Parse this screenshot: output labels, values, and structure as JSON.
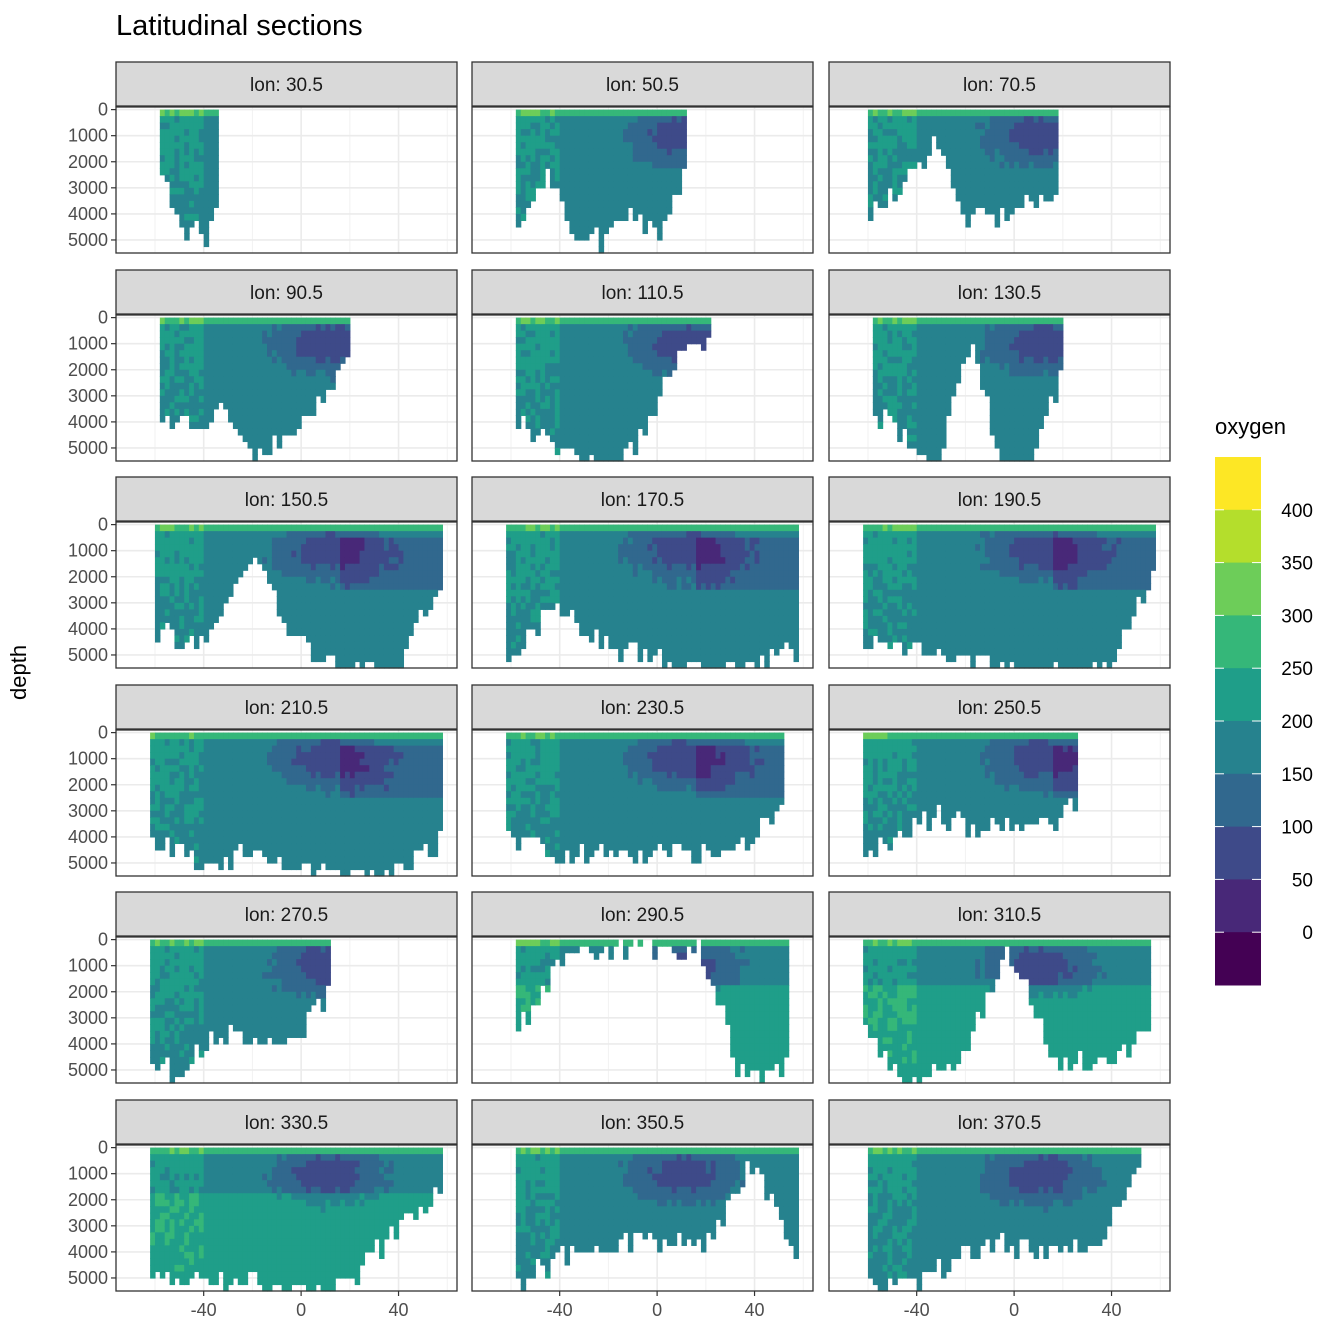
{
  "chart_data": {
    "type": "heatmap",
    "title": "Latitudinal sections",
    "ylabel": "depth",
    "xlabel": "",
    "facet_prefix": "lon: ",
    "panels": [
      {
        "label": "lon: 30.5",
        "lon": 30.5,
        "lat_range": [
          -58,
          -34
        ],
        "max_depth": [
          2000,
          4000,
          5000,
          4000,
          5000,
          2500
        ]
      },
      {
        "label": "lon: 50.5",
        "lon": 50.5,
        "lat_range": [
          -58,
          12
        ],
        "max_depth": [
          4500,
          2500,
          4500,
          5000,
          3500,
          5000,
          1800
        ]
      },
      {
        "label": "lon: 70.5",
        "lon": 70.5,
        "lat_range": [
          -60,
          18
        ],
        "max_depth": [
          4000,
          3000,
          1000,
          4000,
          4000,
          3500,
          3000
        ]
      },
      {
        "label": "lon: 90.5",
        "lon": 90.5,
        "lat_range": [
          -58,
          20
        ],
        "max_depth": [
          4000,
          4000,
          3500,
          5000,
          4500,
          3000,
          1500
        ]
      },
      {
        "label": "lon: 110.5",
        "lon": 110.5,
        "lat_range": [
          -58,
          22
        ],
        "max_depth": [
          4000,
          4500,
          5500,
          5500,
          4000,
          1000,
          800
        ]
      },
      {
        "label": "lon: 130.5",
        "lon": 130.5,
        "lat_range": [
          -58,
          20
        ],
        "max_depth": [
          3500,
          4500,
          5500,
          500,
          5500,
          5500,
          1500
        ]
      },
      {
        "label": "lon: 150.5",
        "lon": 150.5,
        "lat_range": [
          -60,
          58
        ],
        "max_depth": [
          4000,
          4500,
          1000,
          4500,
          5500,
          5500,
          1500
        ]
      },
      {
        "label": "lon: 170.5",
        "lon": 170.5,
        "lat_range": [
          -62,
          58
        ],
        "max_depth": [
          5000,
          3000,
          4500,
          5000,
          5500,
          5500,
          4500
        ]
      },
      {
        "label": "lon: 190.5",
        "lon": 190.5,
        "lat_range": [
          -62,
          58
        ],
        "max_depth": [
          4500,
          4500,
          5000,
          5500,
          5500,
          5500,
          1500
        ]
      },
      {
        "label": "lon: 210.5",
        "lon": 210.5,
        "lat_range": [
          -62,
          58
        ],
        "max_depth": [
          4000,
          5000,
          4500,
          5000,
          5500,
          5000,
          4000
        ]
      },
      {
        "label": "lon: 230.5",
        "lon": 230.5,
        "lat_range": [
          -62,
          52
        ],
        "max_depth": [
          4000,
          4500,
          4500,
          4500,
          4500,
          4500,
          2500
        ]
      },
      {
        "label": "lon: 250.5",
        "lon": 250.5,
        "lat_range": [
          -62,
          26
        ],
        "max_depth": [
          4500,
          4000,
          3000,
          3500,
          3500,
          3500,
          2500
        ]
      },
      {
        "label": "lon: 270.5",
        "lon": 270.5,
        "lat_range": [
          -62,
          12
        ],
        "max_depth": [
          4500,
          5000,
          3500,
          3500,
          4000,
          3500,
          1500
        ]
      },
      {
        "label": "lon: 290.5",
        "lon": 290.5,
        "lat_range": [
          -58,
          54
        ],
        "max_depth": [
          3500,
          300,
          300,
          300,
          300,
          5500,
          4500
        ]
      },
      {
        "label": "lon: 310.5",
        "lon": 310.5,
        "lat_range": [
          -62,
          56
        ],
        "max_depth": [
          3500,
          5500,
          4500,
          300,
          4500,
          4500,
          3500
        ]
      },
      {
        "label": "lon: 330.5",
        "lon": 330.5,
        "lat_range": [
          -62,
          58
        ],
        "max_depth": [
          4500,
          5000,
          5000,
          5500,
          5000,
          3000,
          1500
        ]
      },
      {
        "label": "lon: 350.5",
        "lon": 350.5,
        "lat_range": [
          -58,
          58
        ],
        "max_depth": [
          5000,
          4000,
          3500,
          3500,
          3500,
          300,
          4500
        ]
      },
      {
        "label": "lon: 370.5",
        "lon": 370.5,
        "lat_range": [
          -60,
          52
        ],
        "max_depth": [
          5000,
          5000,
          4000,
          3500,
          4000,
          3500,
          300
        ]
      }
    ],
    "x_ticks": [
      -40,
      0,
      40
    ],
    "x_tick_labels": [
      "-40",
      "0",
      "40"
    ],
    "xlim": [
      -76,
      64
    ],
    "y_ticks": [
      0,
      1000,
      2000,
      3000,
      4000,
      5000
    ],
    "y_tick_labels": [
      "0",
      "1000",
      "2000",
      "3000",
      "4000",
      "5000"
    ],
    "ylim": [
      5500,
      -100
    ],
    "y_reversed": true,
    "grid": true,
    "legend": {
      "title": "oxygen",
      "position": "right",
      "breaks": [
        400,
        350,
        300,
        250,
        200,
        150,
        100,
        50,
        0
      ],
      "labels": [
        "400",
        "350",
        "300",
        "250",
        "200",
        "150",
        "100",
        "50",
        "0"
      ],
      "colors": [
        "#FDE725",
        "#B4DE2C",
        "#6DCD59",
        "#35B779",
        "#1F9E89",
        "#26828E",
        "#31688E",
        "#3E4A89",
        "#482878",
        "#440154"
      ]
    }
  }
}
